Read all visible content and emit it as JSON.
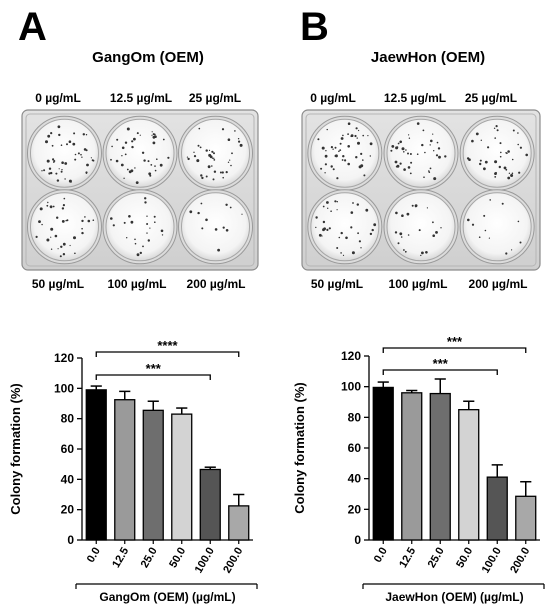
{
  "panels": [
    {
      "letter": "A",
      "title": "GangOm (OEM)",
      "plate_top_labels": [
        "0 µg/mL",
        "12.5 µg/mL",
        "25 µg/mL"
      ],
      "plate_bottom_labels": [
        "50 µg/mL",
        "100 µg/mL",
        "200 µg/mL"
      ]
    },
    {
      "letter": "B",
      "title": "JaewHon (OEM)",
      "plate_top_labels": [
        "0 µg/mL",
        "12.5 µg/mL",
        "25 µg/mL"
      ],
      "plate_bottom_labels": [
        "50 µg/mL",
        "100 µg/mL",
        "200 µg/mL"
      ]
    }
  ],
  "chart_data": [
    {
      "type": "bar",
      "categories": [
        "0.0",
        "12.5",
        "25.0",
        "50.0",
        "100.0",
        "200.0"
      ],
      "values": [
        99,
        92.5,
        85.5,
        83,
        46.5,
        22.5
      ],
      "errors": [
        2.5,
        5.5,
        6,
        4,
        1.5,
        7.5
      ],
      "bar_colors": [
        "#000000",
        "#9a9a9a",
        "#6e6e6e",
        "#d3d3d3",
        "#555555",
        "#a8a8a8"
      ],
      "xlabel": "GangOm (OEM) (µg/mL)",
      "ylabel": "Colony formation (%)",
      "ylim": [
        0,
        120
      ],
      "yticks": [
        "0",
        "20",
        "40",
        "60",
        "80",
        "100",
        "120"
      ],
      "significance": [
        {
          "label": "****",
          "from": 0,
          "to": 5
        },
        {
          "label": "***",
          "from": 0,
          "to": 4
        }
      ]
    },
    {
      "type": "bar",
      "categories": [
        "0.0",
        "12.5",
        "25.0",
        "50.0",
        "100.0",
        "200.0"
      ],
      "values": [
        99.5,
        96,
        95.5,
        85,
        41,
        28.5
      ],
      "errors": [
        3.5,
        1.5,
        9.5,
        5.5,
        8,
        9.5
      ],
      "bar_colors": [
        "#000000",
        "#9a9a9a",
        "#6e6e6e",
        "#d3d3d3",
        "#555555",
        "#a8a8a8"
      ],
      "xlabel": "JaewHon (OEM) (µg/mL)",
      "ylabel": "Colony formation (%)",
      "ylim": [
        0,
        120
      ],
      "yticks": [
        "0",
        "20",
        "40",
        "60",
        "80",
        "100",
        "120"
      ],
      "significance": [
        {
          "label": "***",
          "from": 0,
          "to": 5
        },
        {
          "label": "***",
          "from": 0,
          "to": 4
        }
      ]
    }
  ]
}
